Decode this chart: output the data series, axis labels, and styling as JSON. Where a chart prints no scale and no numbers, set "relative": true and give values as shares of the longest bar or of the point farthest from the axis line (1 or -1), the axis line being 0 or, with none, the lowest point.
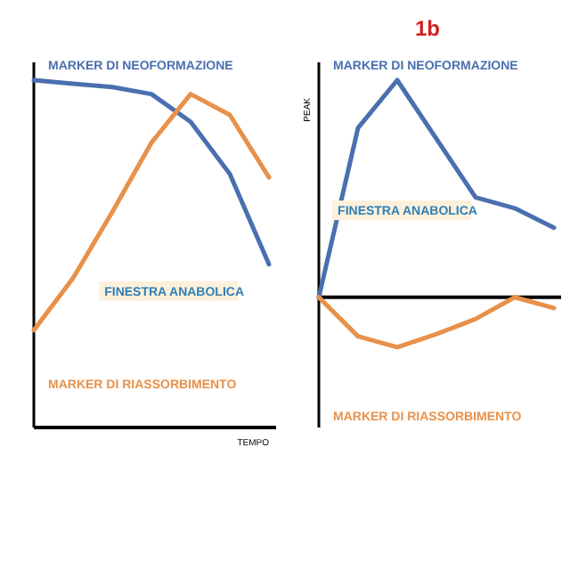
{
  "chart_data": [
    {
      "type": "line",
      "relative": true,
      "xlabel": "TEMPO",
      "categories": [
        null,
        null,
        null,
        null,
        null,
        null,
        null
      ],
      "series": [
        {
          "name": "MARKER DI NEOFORMAZIONE",
          "color": "#4a6fb0",
          "values": [
            1,
            0.99,
            0.98,
            0.96,
            0.88,
            0.73,
            0.47
          ]
        },
        {
          "name": "MARKER DI RIASSORBIMENTO",
          "color": "#e8914a",
          "values": [
            0.28,
            0.43,
            0.62,
            0.82,
            0.96,
            0.9,
            0.72
          ]
        }
      ],
      "annotations": [
        "FINESTRA ANABOLICA"
      ]
    },
    {
      "type": "line",
      "relative": true,
      "title": "1b",
      "ylabel": "PEAK",
      "categories": [
        null,
        null,
        null,
        null,
        null,
        null,
        null
      ],
      "series": [
        {
          "name": "MARKER DI NEOFORMAZIONE",
          "color": "#4a6fb0",
          "values": [
            0,
            0.78,
            1,
            0.73,
            0.46,
            0.41,
            0.32
          ]
        },
        {
          "name": "MARKER DI RIASSORBIMENTO",
          "color": "#e8914a",
          "values": [
            0,
            -0.18,
            -0.23,
            -0.17,
            -0.1,
            0,
            -0.05
          ]
        }
      ],
      "annotations": [
        "FINESTRA ANABOLICA"
      ]
    }
  ]
}
